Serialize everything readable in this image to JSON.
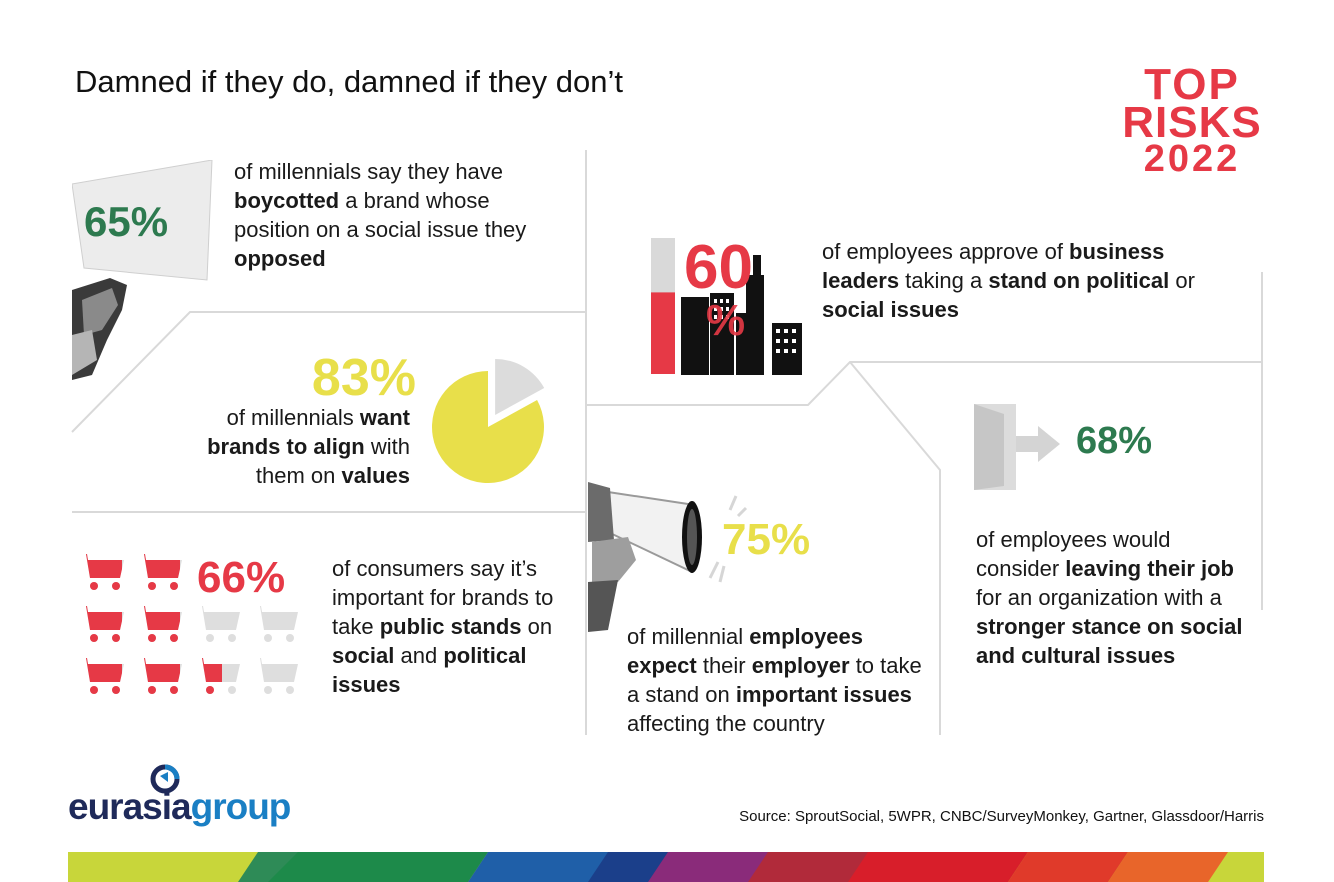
{
  "title": "Damned if they do, damned if they don’t",
  "logo": {
    "line1": "TOP",
    "line2": "RISKS",
    "line3": "2022"
  },
  "stats": {
    "s65": {
      "value": "65%",
      "pre": "of millennials say they have ",
      "b1": "boycotted",
      "mid": " a brand whose position on a social issue they ",
      "b2": "opposed"
    },
    "s83": {
      "value": "83%",
      "pre": "of millennials ",
      "b1": "want brands to align",
      "mid": " with them on ",
      "b2": "values"
    },
    "s66": {
      "value": "66%",
      "pre": "of consumers say it’s important for brands to take ",
      "b1": "public stands",
      "mid": " on ",
      "b2": "social",
      "mid2": " and ",
      "b3": "political issues"
    },
    "s60": {
      "value": "60",
      "suffix": "%",
      "pre": "of employees approve of ",
      "b1": "business leaders",
      "mid": " taking a ",
      "b2": "stand on political",
      "mid2": " or ",
      "b3": "social issues"
    },
    "s75": {
      "value": "75%",
      "pre": "of millennial ",
      "b1": "employees expect",
      "mid": " their ",
      "b2": "employer",
      "mid2": " to take a stand on ",
      "b3": "important issues",
      "end": " affecting the country"
    },
    "s68": {
      "value": "68%",
      "pre": "of employees would consider ",
      "b1": "leaving their job",
      "mid": " for an organization with a ",
      "b2": "stronger stance on social and cultural issues"
    }
  },
  "brand": {
    "name_part1": "eurasia",
    "name_part2": "group"
  },
  "source": "Source: SproutSocial, 5WPR, CNBC/SurveyMonkey, Gartner, Glassdoor/Harris",
  "colors": {
    "green": "#2d7a4f",
    "yellow": "#e8df4a",
    "red": "#e63946",
    "navy": "#1f2a5a",
    "blue": "#1a7fc4"
  },
  "chart_data": {
    "type": "table",
    "pie_83": {
      "filled_percent": 83
    },
    "carts_66": {
      "total": 10,
      "filled": 6.6
    },
    "bar_60": {
      "filled_percent": 60
    }
  }
}
